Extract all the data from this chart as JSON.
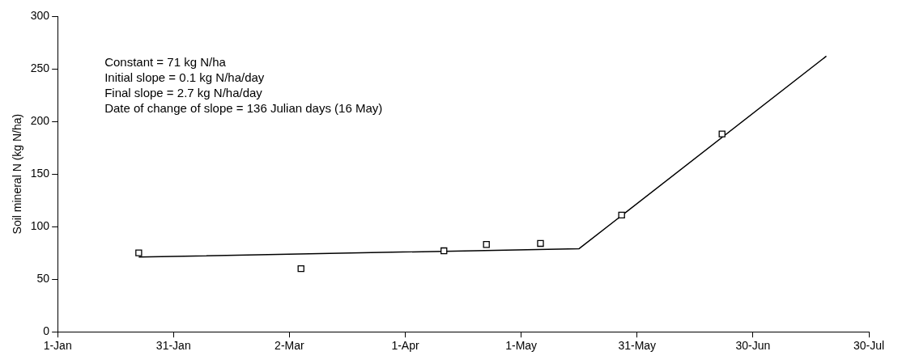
{
  "chart_data": {
    "type": "scatter",
    "ylabel": "Soil mineral N (kg N/ha)",
    "xlim": [
      "--01-01",
      "--07-30"
    ],
    "xticks": [
      {
        "value": "--01-01",
        "label": "1-Jan"
      },
      {
        "value": "--01-31",
        "label": "31-Jan"
      },
      {
        "value": "--03-02",
        "label": "2-Mar"
      },
      {
        "value": "--04-01",
        "label": "1-Apr"
      },
      {
        "value": "--05-01",
        "label": "1-May"
      },
      {
        "value": "--05-31",
        "label": "31-May"
      },
      {
        "value": "--06-30",
        "label": "30-Jun"
      },
      {
        "value": "--07-30",
        "label": "30-Jul"
      }
    ],
    "ylim": [
      0,
      300
    ],
    "yticks": [
      0,
      50,
      100,
      150,
      200,
      250,
      300
    ],
    "grid": false,
    "legend": false,
    "series": [
      {
        "marker": "square",
        "color": "#000000",
        "x": [
          "--01-22",
          "--03-05",
          "--04-11",
          "--04-22",
          "--05-06",
          "--05-27",
          "--06-22"
        ],
        "values": [
          75,
          60,
          77,
          83,
          84,
          111,
          188
        ]
      },
      {
        "type": "line",
        "marker": "none",
        "color": "#000000",
        "x": [
          "--01-22",
          "--05-16",
          "--07-19"
        ],
        "values": [
          71,
          79,
          262
        ]
      }
    ],
    "annotations": [
      "Constant = 71 kg N/ha",
      "Initial slope = 0.1 kg N/ha/day",
      "Final slope = 2.7 kg N/ha/day",
      "Date of change of slope = 136 Julian days (16 May)"
    ]
  }
}
